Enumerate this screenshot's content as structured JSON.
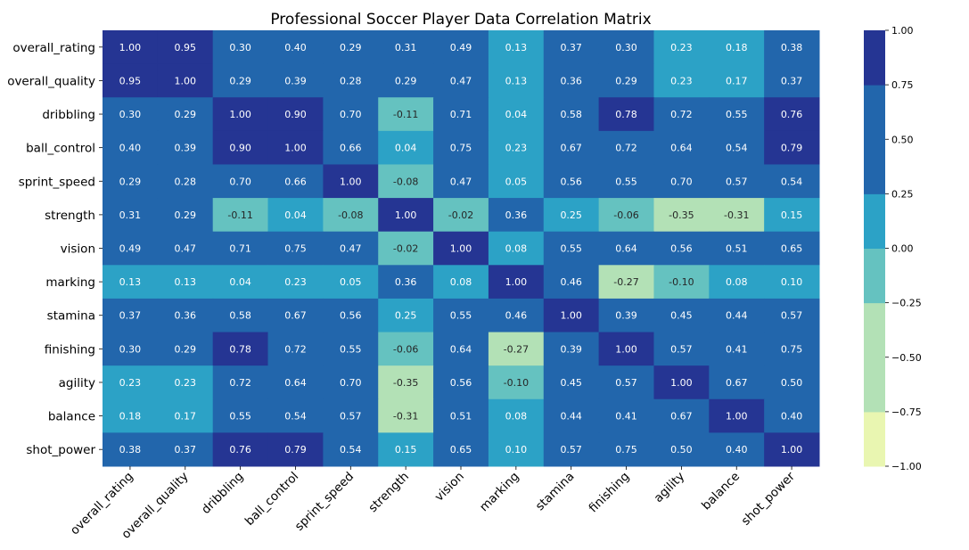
{
  "chart_data": {
    "type": "heatmap",
    "title": "Professional Soccer Player Data Correlation Matrix",
    "rows": [
      "overall_rating",
      "overall_quality",
      "dribbling",
      "ball_control",
      "sprint_speed",
      "strength",
      "vision",
      "marking",
      "stamina",
      "finishing",
      "agility",
      "balance",
      "shot_power"
    ],
    "columns": [
      "overall_rating",
      "overall_quality",
      "dribbling",
      "ball_control",
      "sprint_speed",
      "strength",
      "vision",
      "marking",
      "stamina",
      "finishing",
      "agility",
      "balance",
      "shot_power"
    ],
    "values": [
      [
        1.0,
        0.95,
        0.3,
        0.4,
        0.29,
        0.31,
        0.49,
        0.13,
        0.37,
        0.3,
        0.23,
        0.18,
        0.38
      ],
      [
        0.95,
        1.0,
        0.29,
        0.39,
        0.28,
        0.29,
        0.47,
        0.13,
        0.36,
        0.29,
        0.23,
        0.17,
        0.37
      ],
      [
        0.3,
        0.29,
        1.0,
        0.9,
        0.7,
        -0.11,
        0.71,
        0.04,
        0.58,
        0.78,
        0.72,
        0.55,
        0.76
      ],
      [
        0.4,
        0.39,
        0.9,
        1.0,
        0.66,
        0.04,
        0.75,
        0.23,
        0.67,
        0.72,
        0.64,
        0.54,
        0.79
      ],
      [
        0.29,
        0.28,
        0.7,
        0.66,
        1.0,
        -0.08,
        0.47,
        0.05,
        0.56,
        0.55,
        0.7,
        0.57,
        0.54
      ],
      [
        0.31,
        0.29,
        -0.11,
        0.04,
        -0.08,
        1.0,
        -0.02,
        0.36,
        0.25,
        -0.06,
        -0.35,
        -0.31,
        0.15
      ],
      [
        0.49,
        0.47,
        0.71,
        0.75,
        0.47,
        -0.02,
        1.0,
        0.08,
        0.55,
        0.64,
        0.56,
        0.51,
        0.65
      ],
      [
        0.13,
        0.13,
        0.04,
        0.23,
        0.05,
        0.36,
        0.08,
        1.0,
        0.46,
        -0.27,
        -0.1,
        0.08,
        0.1
      ],
      [
        0.37,
        0.36,
        0.58,
        0.67,
        0.56,
        0.25,
        0.55,
        0.46,
        1.0,
        0.39,
        0.45,
        0.44,
        0.57
      ],
      [
        0.3,
        0.29,
        0.78,
        0.72,
        0.55,
        -0.06,
        0.64,
        -0.27,
        0.39,
        1.0,
        0.57,
        0.41,
        0.75
      ],
      [
        0.23,
        0.23,
        0.72,
        0.64,
        0.7,
        -0.35,
        0.56,
        -0.1,
        0.45,
        0.57,
        1.0,
        0.67,
        0.5
      ],
      [
        0.18,
        0.17,
        0.55,
        0.54,
        0.57,
        -0.31,
        0.51,
        0.08,
        0.44,
        0.41,
        0.67,
        1.0,
        0.4
      ],
      [
        0.38,
        0.37,
        0.76,
        0.79,
        0.54,
        0.15,
        0.65,
        0.1,
        0.57,
        0.75,
        0.5,
        0.4,
        1.0
      ]
    ],
    "colorbar": {
      "range": [
        -1.0,
        1.0
      ],
      "ticks": [
        1.0,
        0.75,
        0.5,
        0.25,
        0.0,
        -0.25,
        -0.5,
        -0.75,
        -1.0
      ],
      "tick_labels": [
        "1.00",
        "0.75",
        "0.50",
        "0.25",
        "0.00",
        "−0.25",
        "−0.50",
        "−0.75",
        "−1.00"
      ],
      "bins": [
        {
          "min": -1.0,
          "max": -0.75,
          "color": "#e9f6b1"
        },
        {
          "min": -0.75,
          "max": -0.25,
          "color": "#b3e1b6"
        },
        {
          "min": -0.25,
          "max": 0.0,
          "color": "#65c2c0"
        },
        {
          "min": 0.0,
          "max": 0.25,
          "color": "#2ca2c6"
        },
        {
          "min": 0.25,
          "max": 0.75,
          "color": "#2266ac"
        },
        {
          "min": 0.75,
          "max": 1.0,
          "color": "#253593"
        }
      ]
    },
    "grid": false
  }
}
